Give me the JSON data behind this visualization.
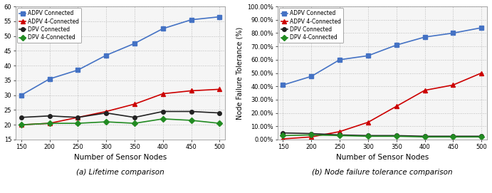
{
  "x": [
    150,
    200,
    250,
    300,
    350,
    400,
    450,
    500
  ],
  "lifetime": {
    "ADPV_Connected": [
      30.0,
      35.5,
      38.5,
      43.5,
      47.5,
      52.5,
      55.5,
      56.5
    ],
    "ADPV_4Connected": [
      20.0,
      20.5,
      22.5,
      24.5,
      27.0,
      30.5,
      31.5,
      32.0
    ],
    "DPV_Connected": [
      22.5,
      23.0,
      22.5,
      24.0,
      22.5,
      24.5,
      24.5,
      24.0
    ],
    "DPV_4Connected": [
      20.0,
      20.5,
      20.5,
      21.0,
      20.5,
      22.0,
      21.5,
      20.5
    ]
  },
  "node_failure": {
    "ADPV_Connected": [
      41.0,
      47.5,
      60.0,
      63.0,
      71.0,
      77.0,
      80.0,
      84.0
    ],
    "ADPV_4Connected": [
      0.5,
      2.0,
      6.0,
      13.0,
      25.0,
      37.0,
      41.0,
      50.0
    ],
    "DPV_Connected": [
      5.0,
      4.5,
      3.5,
      3.0,
      3.0,
      2.5,
      2.5,
      2.5
    ],
    "DPV_4Connected": [
      3.0,
      3.5,
      3.0,
      2.5,
      2.5,
      2.0,
      2.0,
      2.0
    ]
  },
  "colors": {
    "ADPV_Connected": "#4472C4",
    "ADPV_4Connected": "#CC0000",
    "DPV_Connected": "#222222",
    "DPV_4Connected": "#228B22"
  },
  "labels": {
    "ADPV_Connected": "ADPV Connected",
    "ADPV_4Connected": "ADPV 4-Connected",
    "DPV_Connected": "DPV Connected",
    "DPV_4Connected": "DPV 4-Connected"
  },
  "markers": {
    "ADPV_Connected": "s",
    "ADPV_4Connected": "^",
    "DPV_Connected": "o",
    "DPV_4Connected": "D"
  },
  "lifetime_ylim": [
    15,
    60
  ],
  "lifetime_yticks": [
    15,
    20,
    25,
    30,
    35,
    40,
    45,
    50,
    55,
    60
  ],
  "nft_ylim": [
    0,
    100
  ],
  "nft_yticks": [
    0,
    10,
    20,
    30,
    40,
    50,
    60,
    70,
    80,
    90,
    100
  ],
  "xlabel": "Number of Sensor Nodes",
  "ylabel_right": "Node Failure Tolerance (%)",
  "caption_left": "(a) Lifetime comparison",
  "caption_right": "(b) Node failure tolerance comparison",
  "background_color": "#FFFFFF",
  "plot_bg_color": "#F5F5F5",
  "grid_color": "#BBBBBB"
}
